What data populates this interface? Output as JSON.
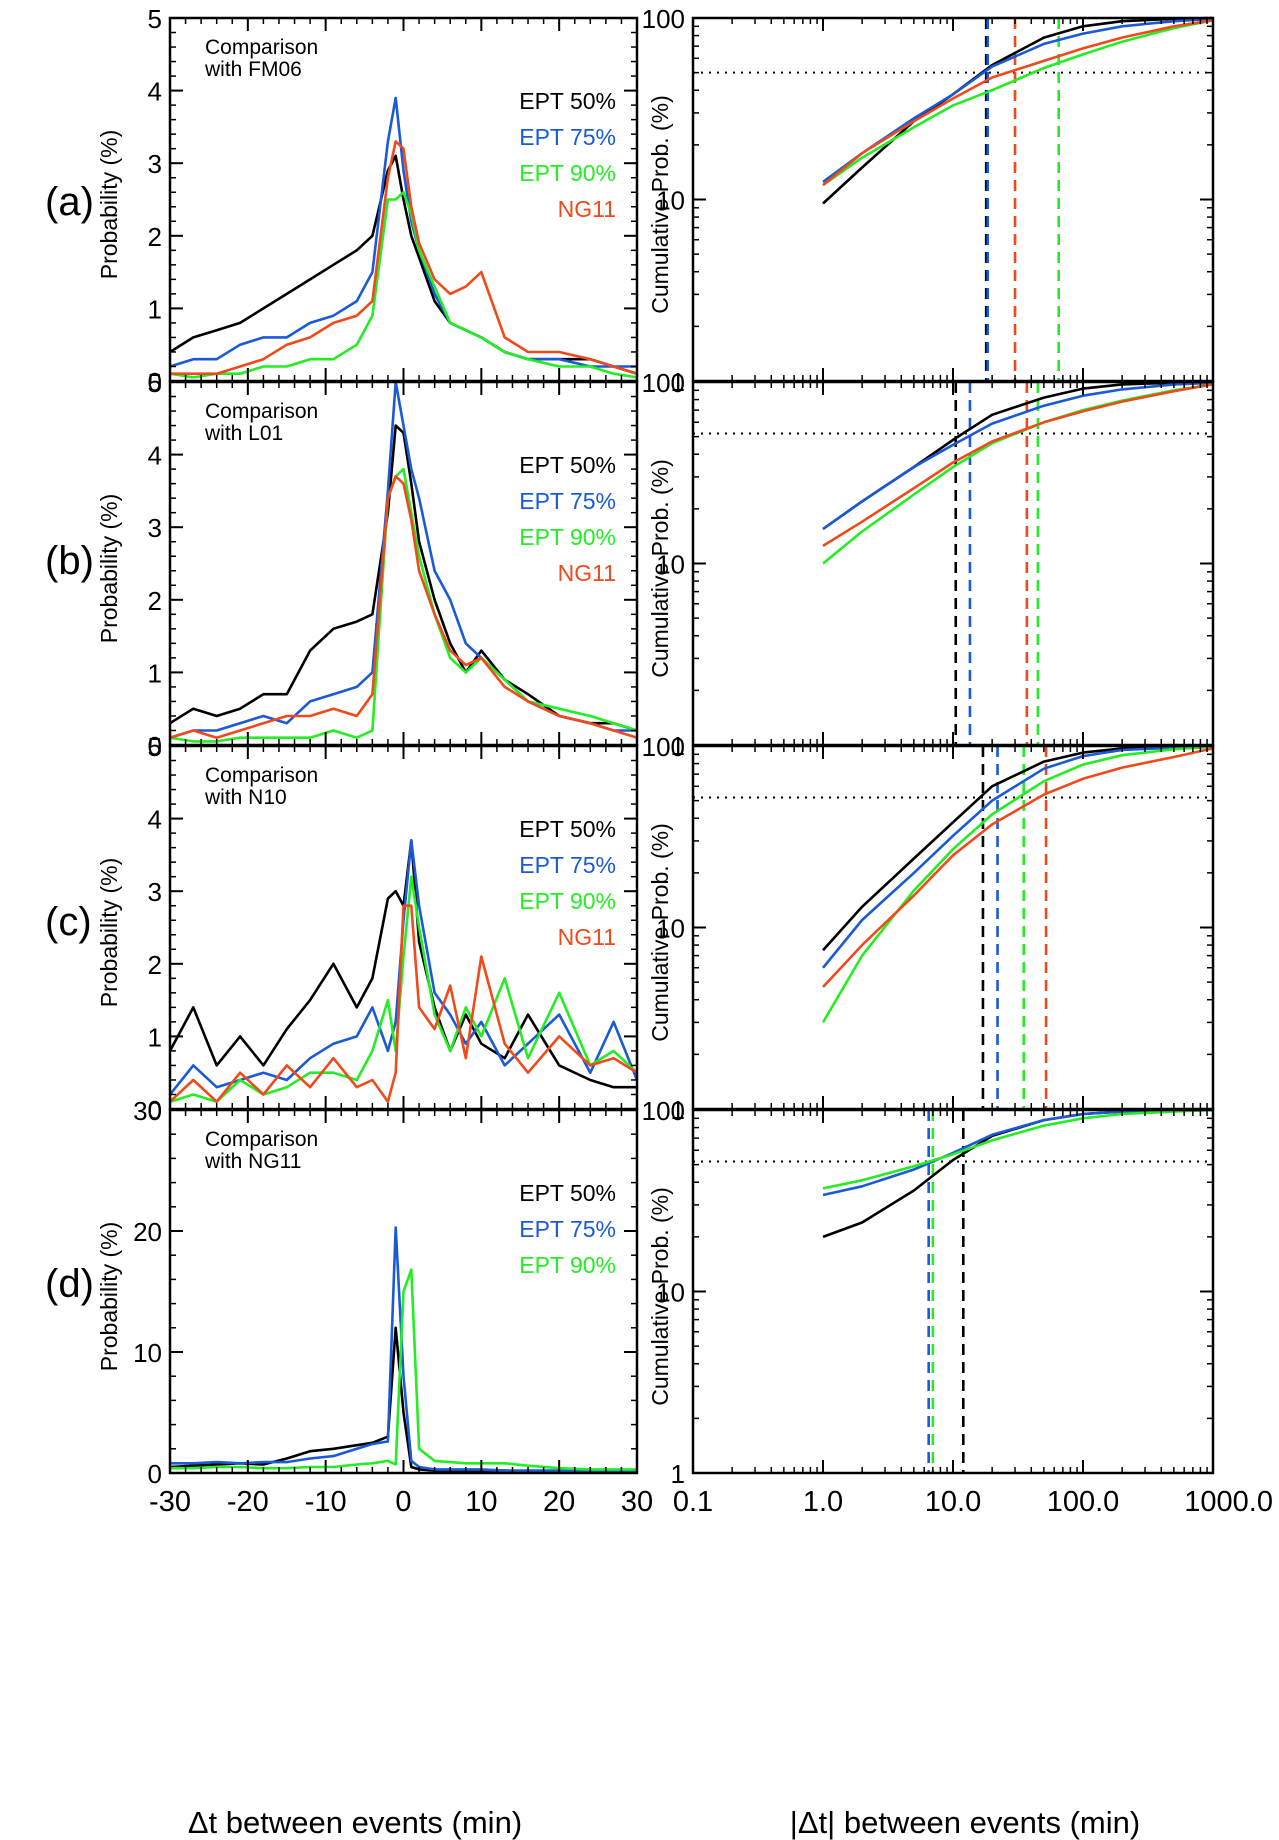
{
  "panel_labels": [
    "(a)",
    "(b)",
    "(c)",
    "(d)"
  ],
  "left_xlabel": "Δt between events (min)",
  "right_xlabel": "|Δt| between events (min)",
  "left_ylabel": "Probability (%)",
  "right_ylabel": "Cumulative Prob. (%)",
  "series_colors": {
    "EPT 50%": "#000000",
    "EPT 75%": "#1a5ad6",
    "EPT 90%": "#22ee22",
    "NG11": "#f04a1c"
  },
  "chart_data": [
    {
      "id": "a-left",
      "type": "line",
      "annotation": [
        "Comparison",
        " with FM06"
      ],
      "xlim": [
        -30,
        30
      ],
      "ylim": [
        0,
        5
      ],
      "yticks": [
        0,
        1,
        2,
        3,
        4,
        5
      ],
      "xticks": [
        -30,
        -20,
        -10,
        0,
        10,
        20,
        30
      ],
      "legend": [
        "EPT 50%",
        "EPT 75%",
        "EPT 90%",
        "NG11"
      ],
      "x": [
        -30,
        -27,
        -24,
        -21,
        -18,
        -15,
        -12,
        -9,
        -6,
        -4,
        -2,
        -1,
        0,
        1,
        2,
        4,
        6,
        8,
        10,
        13,
        16,
        20,
        24,
        27,
        30
      ],
      "series": [
        {
          "name": "EPT 50%",
          "values": [
            0.4,
            0.6,
            0.7,
            0.8,
            1.0,
            1.2,
            1.4,
            1.6,
            1.8,
            2.0,
            2.9,
            3.1,
            2.5,
            2.0,
            1.7,
            1.1,
            0.8,
            0.7,
            0.6,
            0.4,
            0.3,
            0.3,
            0.3,
            0.2,
            0.1
          ]
        },
        {
          "name": "EPT 75%",
          "values": [
            0.2,
            0.3,
            0.3,
            0.5,
            0.6,
            0.6,
            0.8,
            0.9,
            1.1,
            1.5,
            3.3,
            3.9,
            2.9,
            2.2,
            1.8,
            1.2,
            0.8,
            0.7,
            0.6,
            0.4,
            0.3,
            0.3,
            0.2,
            0.2,
            0.2
          ]
        },
        {
          "name": "EPT 90%",
          "values": [
            0.1,
            0.05,
            0.1,
            0.1,
            0.2,
            0.2,
            0.3,
            0.3,
            0.5,
            0.9,
            2.5,
            2.5,
            2.6,
            2.3,
            1.8,
            1.3,
            0.8,
            0.7,
            0.6,
            0.4,
            0.3,
            0.2,
            0.2,
            0.1,
            0.05
          ]
        },
        {
          "name": "NG11",
          "values": [
            0.1,
            0.1,
            0.1,
            0.2,
            0.3,
            0.5,
            0.6,
            0.8,
            0.9,
            1.1,
            2.8,
            3.3,
            3.2,
            2.4,
            1.9,
            1.4,
            1.2,
            1.3,
            1.5,
            0.6,
            0.4,
            0.4,
            0.3,
            0.2,
            0.1
          ]
        }
      ]
    },
    {
      "id": "a-right",
      "type": "line",
      "xscale": "log",
      "yscale": "log",
      "xlim": [
        0.1,
        1000
      ],
      "ylim": [
        1,
        100
      ],
      "yticks": [
        1,
        10,
        100
      ],
      "xticks": [
        0.1,
        1.0,
        10.0,
        100.0,
        1000.0
      ],
      "xticklabels": [
        "0.1",
        "1.0",
        "10.0",
        "100.0",
        "1000.0"
      ],
      "hline": 50,
      "x": [
        1,
        2,
        5,
        10,
        20,
        50,
        100,
        200,
        500,
        1000
      ],
      "series": [
        {
          "name": "EPT 50%",
          "values": [
            9.5,
            15,
            27,
            38,
            55,
            78,
            90,
            96,
            99,
            100
          ],
          "median": 18
        },
        {
          "name": "EPT 75%",
          "values": [
            12.5,
            18,
            28,
            38,
            54,
            72,
            82,
            90,
            96,
            99
          ],
          "median": 18.5
        },
        {
          "name": "EPT 90%",
          "values": [
            12,
            17,
            25,
            33,
            40,
            53,
            63,
            74,
            88,
            97
          ],
          "median": 65
        },
        {
          "name": "NG11",
          "values": [
            12,
            18,
            27,
            36,
            47,
            58,
            68,
            78,
            90,
            97
          ],
          "median": 30
        }
      ]
    },
    {
      "id": "b-left",
      "type": "line",
      "annotation": [
        "Comparison",
        " with L01"
      ],
      "xlim": [
        -30,
        30
      ],
      "ylim": [
        0,
        5
      ],
      "yticks": [
        0,
        1,
        2,
        3,
        4,
        5
      ],
      "xticks": [
        -30,
        -20,
        -10,
        0,
        10,
        20,
        30
      ],
      "legend": [
        "EPT 50%",
        "EPT 75%",
        "EPT 90%",
        "NG11"
      ],
      "x": [
        -30,
        -27,
        -24,
        -21,
        -18,
        -15,
        -12,
        -9,
        -6,
        -4,
        -2,
        -1,
        0,
        1,
        2,
        4,
        6,
        8,
        10,
        13,
        16,
        20,
        24,
        27,
        30
      ],
      "series": [
        {
          "name": "EPT 50%",
          "values": [
            0.3,
            0.5,
            0.4,
            0.5,
            0.7,
            0.7,
            1.3,
            1.6,
            1.7,
            1.8,
            3.2,
            4.4,
            4.3,
            3.6,
            2.8,
            2.0,
            1.4,
            1.0,
            1.3,
            0.9,
            0.7,
            0.4,
            0.3,
            0.3,
            0.2
          ]
        },
        {
          "name": "EPT 75%",
          "values": [
            0.1,
            0.2,
            0.2,
            0.3,
            0.4,
            0.3,
            0.6,
            0.7,
            0.8,
            1.0,
            3.5,
            5.0,
            4.4,
            3.8,
            3.4,
            2.4,
            2.0,
            1.4,
            1.2,
            0.9,
            0.6,
            0.4,
            0.3,
            0.2,
            0.2
          ]
        },
        {
          "name": "EPT 90%",
          "values": [
            0.1,
            0.05,
            0.05,
            0.1,
            0.1,
            0.1,
            0.1,
            0.2,
            0.1,
            0.2,
            3.4,
            3.7,
            3.8,
            3.2,
            2.6,
            1.8,
            1.2,
            1.0,
            1.2,
            0.9,
            0.6,
            0.5,
            0.4,
            0.3,
            0.2
          ]
        },
        {
          "name": "NG11",
          "values": [
            0.1,
            0.2,
            0.1,
            0.2,
            0.3,
            0.4,
            0.4,
            0.5,
            0.4,
            0.7,
            3.4,
            3.7,
            3.6,
            3.1,
            2.4,
            1.8,
            1.3,
            1.1,
            1.2,
            0.8,
            0.6,
            0.4,
            0.3,
            0.2,
            0.1
          ]
        }
      ]
    },
    {
      "id": "b-right",
      "type": "line",
      "xscale": "log",
      "yscale": "log",
      "xlim": [
        0.1,
        1000
      ],
      "ylim": [
        1,
        100
      ],
      "yticks": [
        1,
        10,
        100
      ],
      "xticks": [
        0.1,
        1.0,
        10.0,
        100.0,
        1000.0
      ],
      "xticklabels": [
        "0.1",
        "1.0",
        "10.0",
        "100.0",
        "1000.0"
      ],
      "hline": 52,
      "x": [
        1,
        2,
        5,
        10,
        20,
        50,
        100,
        200,
        500,
        1000
      ],
      "series": [
        {
          "name": "EPT 50%",
          "values": [
            15.5,
            22,
            34,
            48,
            66,
            82,
            92,
            97,
            99,
            100
          ],
          "median": 10.5
        },
        {
          "name": "EPT 75%",
          "values": [
            15.5,
            22,
            34,
            45,
            59,
            74,
            84,
            91,
            97,
            99
          ],
          "median": 13.5
        },
        {
          "name": "EPT 90%",
          "values": [
            10,
            15,
            24,
            34,
            46,
            60,
            70,
            79,
            90,
            97
          ],
          "median": 45
        },
        {
          "name": "NG11",
          "values": [
            12.5,
            17,
            26,
            36,
            47,
            60,
            69,
            78,
            89,
            97
          ],
          "median": 37
        }
      ]
    },
    {
      "id": "c-left",
      "type": "line",
      "annotation": [
        "Comparison",
        " with N10"
      ],
      "xlim": [
        -30,
        30
      ],
      "ylim": [
        0,
        5
      ],
      "yticks": [
        0,
        1,
        2,
        3,
        4,
        5
      ],
      "xticks": [
        -30,
        -20,
        -10,
        0,
        10,
        20,
        30
      ],
      "legend": [
        "EPT 50%",
        "EPT 75%",
        "EPT 90%",
        "NG11"
      ],
      "x": [
        -30,
        -27,
        -24,
        -21,
        -18,
        -15,
        -12,
        -9,
        -6,
        -4,
        -2,
        -1,
        0,
        1,
        2,
        4,
        6,
        8,
        10,
        13,
        16,
        20,
        24,
        27,
        30
      ],
      "series": [
        {
          "name": "EPT 50%",
          "values": [
            0.8,
            1.4,
            0.6,
            1.0,
            0.6,
            1.1,
            1.5,
            2.0,
            1.4,
            1.8,
            2.9,
            3.0,
            2.8,
            3.7,
            2.3,
            1.4,
            0.8,
            1.3,
            0.9,
            0.7,
            1.3,
            0.6,
            0.4,
            0.3,
            0.3
          ]
        },
        {
          "name": "EPT 75%",
          "values": [
            0.2,
            0.6,
            0.3,
            0.4,
            0.5,
            0.4,
            0.7,
            0.9,
            1.0,
            1.4,
            0.8,
            1.2,
            2.6,
            3.7,
            2.8,
            1.6,
            1.3,
            0.9,
            1.2,
            0.6,
            0.9,
            1.3,
            0.5,
            1.2,
            0.4
          ]
        },
        {
          "name": "EPT 90%",
          "values": [
            0.1,
            0.2,
            0.1,
            0.4,
            0.2,
            0.3,
            0.5,
            0.5,
            0.4,
            0.8,
            1.5,
            0.8,
            2.1,
            3.2,
            2.5,
            1.3,
            0.8,
            1.4,
            1.0,
            1.8,
            0.7,
            1.6,
            0.6,
            0.8,
            0.5
          ]
        },
        {
          "name": "NG11",
          "values": [
            0.1,
            0.4,
            0.1,
            0.5,
            0.2,
            0.6,
            0.3,
            0.7,
            0.3,
            0.4,
            0.1,
            0.5,
            2.8,
            2.8,
            1.4,
            1.1,
            1.7,
            0.7,
            2.1,
            0.9,
            0.5,
            1.0,
            0.6,
            0.7,
            0.5
          ]
        }
      ]
    },
    {
      "id": "c-right",
      "type": "line",
      "xscale": "log",
      "yscale": "log",
      "xlim": [
        0.1,
        1000
      ],
      "ylim": [
        1,
        100
      ],
      "yticks": [
        1,
        10,
        100
      ],
      "xticks": [
        0.1,
        1.0,
        10.0,
        100.0,
        1000.0
      ],
      "xticklabels": [
        "0.1",
        "1.0",
        "10.0",
        "100.0",
        "1000.0"
      ],
      "hline": 52,
      "x": [
        1,
        2,
        5,
        10,
        20,
        50,
        100,
        200,
        500,
        1000
      ],
      "series": [
        {
          "name": "EPT 50%",
          "values": [
            7.5,
            13,
            24,
            38,
            60,
            82,
            92,
            97,
            99,
            100
          ],
          "median": 17
        },
        {
          "name": "EPT 75%",
          "values": [
            6,
            11,
            20,
            32,
            50,
            75,
            88,
            95,
            98,
            100
          ],
          "median": 22
        },
        {
          "name": "EPT 90%",
          "values": [
            3,
            7,
            16,
            27,
            42,
            64,
            79,
            89,
            96,
            99
          ],
          "median": 35
        },
        {
          "name": "NG11",
          "values": [
            4.7,
            8,
            15,
            25,
            37,
            54,
            66,
            76,
            87,
            97
          ],
          "median": 52
        }
      ]
    },
    {
      "id": "d-left",
      "type": "line",
      "annotation": [
        "Comparison",
        " with NG11"
      ],
      "xlim": [
        -30,
        30
      ],
      "ylim": [
        0,
        30
      ],
      "yticks": [
        0,
        10,
        20,
        30
      ],
      "xticks": [
        -30,
        -20,
        -10,
        0,
        10,
        20,
        30
      ],
      "legend": [
        "EPT 50%",
        "EPT 75%",
        "EPT 90%"
      ],
      "x": [
        -30,
        -27,
        -24,
        -21,
        -18,
        -15,
        -12,
        -9,
        -6,
        -4,
        -2,
        -1,
        0,
        1,
        2,
        4,
        6,
        8,
        10,
        13,
        16,
        20,
        24,
        27,
        30
      ],
      "series": [
        {
          "name": "EPT 50%",
          "values": [
            0.5,
            0.6,
            0.7,
            0.8,
            0.7,
            1.2,
            1.8,
            2.0,
            2.3,
            2.5,
            3.0,
            12.0,
            5.0,
            0.5,
            0.3,
            0.2,
            0.2,
            0.2,
            0.2,
            0.2,
            0.1,
            0.1,
            0.1,
            0.1,
            0.1
          ]
        },
        {
          "name": "EPT 75%",
          "values": [
            0.8,
            0.8,
            0.9,
            0.8,
            0.9,
            0.9,
            1.2,
            1.4,
            2.0,
            2.4,
            2.6,
            20.3,
            8.0,
            1.0,
            0.5,
            0.3,
            0.3,
            0.3,
            0.3,
            0.2,
            0.2,
            0.2,
            0.1,
            0.1,
            0.1
          ]
        },
        {
          "name": "EPT 90%",
          "values": [
            0.4,
            0.4,
            0.5,
            0.5,
            0.4,
            0.4,
            0.5,
            0.5,
            0.7,
            0.8,
            1.0,
            0.7,
            15.0,
            16.8,
            2.0,
            1.0,
            0.9,
            0.8,
            0.8,
            0.8,
            0.6,
            0.4,
            0.3,
            0.3,
            0.3
          ]
        }
      ]
    },
    {
      "id": "d-right",
      "type": "line",
      "xscale": "log",
      "yscale": "log",
      "xlim": [
        0.1,
        1000
      ],
      "ylim": [
        1,
        100
      ],
      "yticks": [
        1,
        10,
        100
      ],
      "xticks": [
        0.1,
        1.0,
        10.0,
        100.0,
        1000.0
      ],
      "xticklabels": [
        "0.1",
        "1.0",
        "10.0",
        "100.0",
        "1000.0"
      ],
      "hline": 52,
      "x": [
        1,
        2,
        5,
        10,
        20,
        50,
        100,
        200,
        500,
        1000
      ],
      "series": [
        {
          "name": "EPT 50%",
          "values": [
            20,
            24,
            36,
            53,
            72,
            88,
            95,
            98,
            99,
            100
          ],
          "median": 12
        },
        {
          "name": "EPT 75%",
          "values": [
            34,
            38,
            47,
            58,
            73,
            88,
            95,
            98,
            99,
            100
          ],
          "median": 6.5
        },
        {
          "name": "EPT 90%",
          "values": [
            37,
            41,
            49,
            57,
            68,
            82,
            90,
            95,
            98,
            100
          ],
          "median": 7
        }
      ]
    }
  ]
}
